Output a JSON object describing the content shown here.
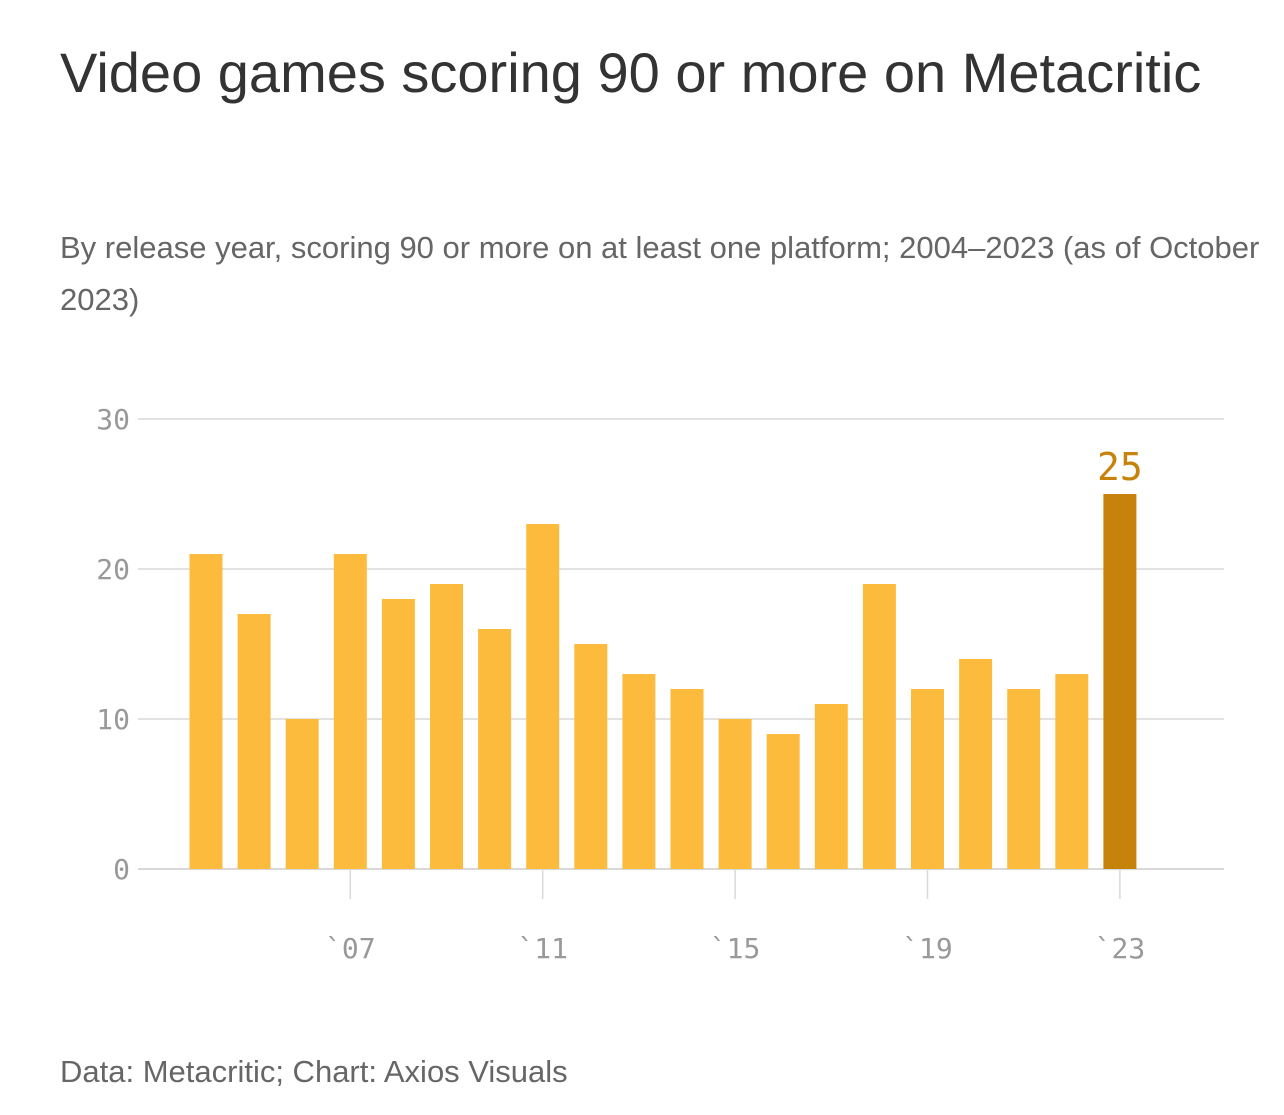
{
  "chart_data": {
    "type": "bar",
    "title": "Video games scoring 90 or more on Metacritic",
    "subtitle": "By release year, scoring 90 or more on at least one platform; 2004–2023 (as of October 2023)",
    "source": "Data: Metacritic; Chart: Axios Visuals",
    "categories": [
      "2004",
      "2005",
      "2006",
      "2007",
      "2008",
      "2009",
      "2010",
      "2011",
      "2012",
      "2013",
      "2014",
      "2015",
      "2016",
      "2017",
      "2018",
      "2019",
      "2020",
      "2021",
      "2022",
      "2023"
    ],
    "values": [
      21,
      17,
      10,
      21,
      18,
      19,
      16,
      23,
      15,
      13,
      12,
      10,
      9,
      11,
      19,
      12,
      14,
      12,
      13,
      25
    ],
    "highlight_index": 19,
    "highlight_label": "25",
    "ylim": [
      0,
      30
    ],
    "yticks": [
      0,
      10,
      20,
      30
    ],
    "xticks": [
      {
        "index": 3,
        "label": "`07"
      },
      {
        "index": 7,
        "label": "`11"
      },
      {
        "index": 11,
        "label": "`15"
      },
      {
        "index": 15,
        "label": "`19"
      },
      {
        "index": 19,
        "label": "`23"
      }
    ],
    "xlabel": "",
    "ylabel": "",
    "grid": true,
    "colors": {
      "bar": "#fdbb3d",
      "highlight": "#c7820c",
      "grid": "#d9d9d9",
      "axis": "#cccccc"
    }
  }
}
